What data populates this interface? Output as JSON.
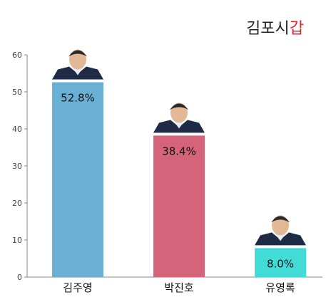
{
  "header": {
    "region": "김포시",
    "district": "갑"
  },
  "colors": {
    "accent": "#d9262c"
  },
  "chart_data": {
    "type": "bar",
    "title": "김포시갑",
    "xlabel": "",
    "ylabel": "",
    "ylim": [
      0,
      60
    ],
    "yticks": [
      0,
      10,
      20,
      30,
      40,
      50,
      60
    ],
    "grid": false,
    "legend": "none",
    "categories": [
      "김주영",
      "박진호",
      "유영록"
    ],
    "values": [
      52.8,
      38.4,
      8.0
    ],
    "value_labels": [
      "52.8%",
      "38.4%",
      "8.0%"
    ],
    "bar_colors": [
      "#6ab0d4",
      "#d5637a",
      "#41dcd6"
    ],
    "candidate_photos": [
      "candidate-portrait",
      "candidate-portrait",
      "candidate-portrait"
    ]
  }
}
